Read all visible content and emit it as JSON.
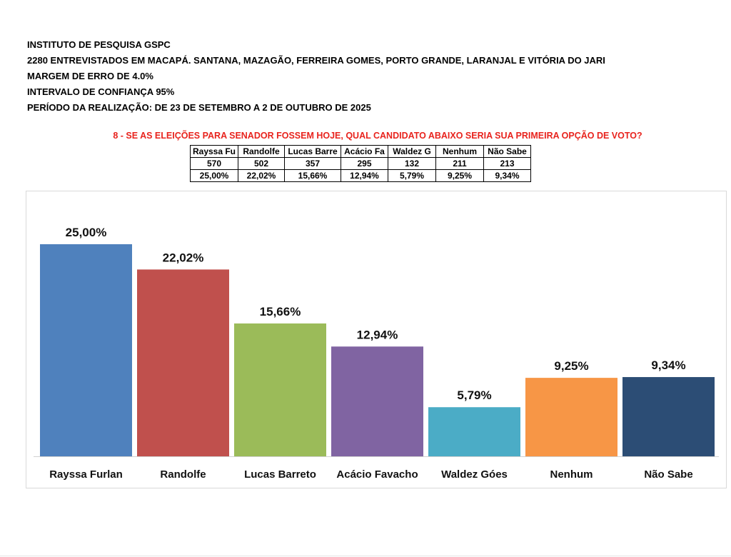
{
  "header": {
    "lines": [
      "INSTITUTO DE PESQUISA GSPC",
      "2280 ENTREVISTADOS EM MACAPÁ. SANTANA, MAZAGÃO, FERREIRA GOMES, PORTO GRANDE, LARANJAL E VITÓRIA DO JARI",
      "MARGEM DE ERRO DE 4.0%",
      "INTERVALO DE CONFIANÇA 95%",
      "PERÍODO DA REALIZAÇÃO: DE 23 DE SETEMBRO A 2 DE OUTUBRO DE 2025"
    ]
  },
  "question": "8 - SE AS ELEIÇÕES PARA SENADOR FOSSEM HOJE, QUAL CANDIDATO ABAIXO SERIA SUA PRIMEIRA OPÇÃO DE VOTO?",
  "table": {
    "headers": [
      "Rayssa Fu",
      "Randolfe",
      "Lucas Barre",
      "Acácio Fa",
      "Waldez G",
      "Nenhum",
      "Não Sabe"
    ],
    "counts": [
      "570",
      "502",
      "357",
      "295",
      "132",
      "211",
      "213"
    ],
    "percents": [
      "25,00%",
      "22,02%",
      "15,66%",
      "12,94%",
      "5,79%",
      "9,25%",
      "9,34%"
    ]
  },
  "chart_data": {
    "type": "bar",
    "categories": [
      "Rayssa Furlan",
      "Randolfe",
      "Lucas Barreto",
      "Acácio Favacho",
      "Waldez Góes",
      "Nenhum",
      "Não Sabe"
    ],
    "values": [
      25.0,
      22.02,
      15.66,
      12.94,
      5.79,
      9.25,
      9.34
    ],
    "value_labels": [
      "25,00%",
      "22,02%",
      "15,66%",
      "12,94%",
      "5,79%",
      "9,25%",
      "9,34%"
    ],
    "colors": [
      "#4f81bd",
      "#c0504d",
      "#9bbb59",
      "#8064a2",
      "#4bacc6",
      "#f79646",
      "#2c4d75"
    ],
    "title": "",
    "xlabel": "",
    "ylabel": "",
    "ylim": [
      0,
      25
    ],
    "grid": false,
    "legend": "none"
  }
}
